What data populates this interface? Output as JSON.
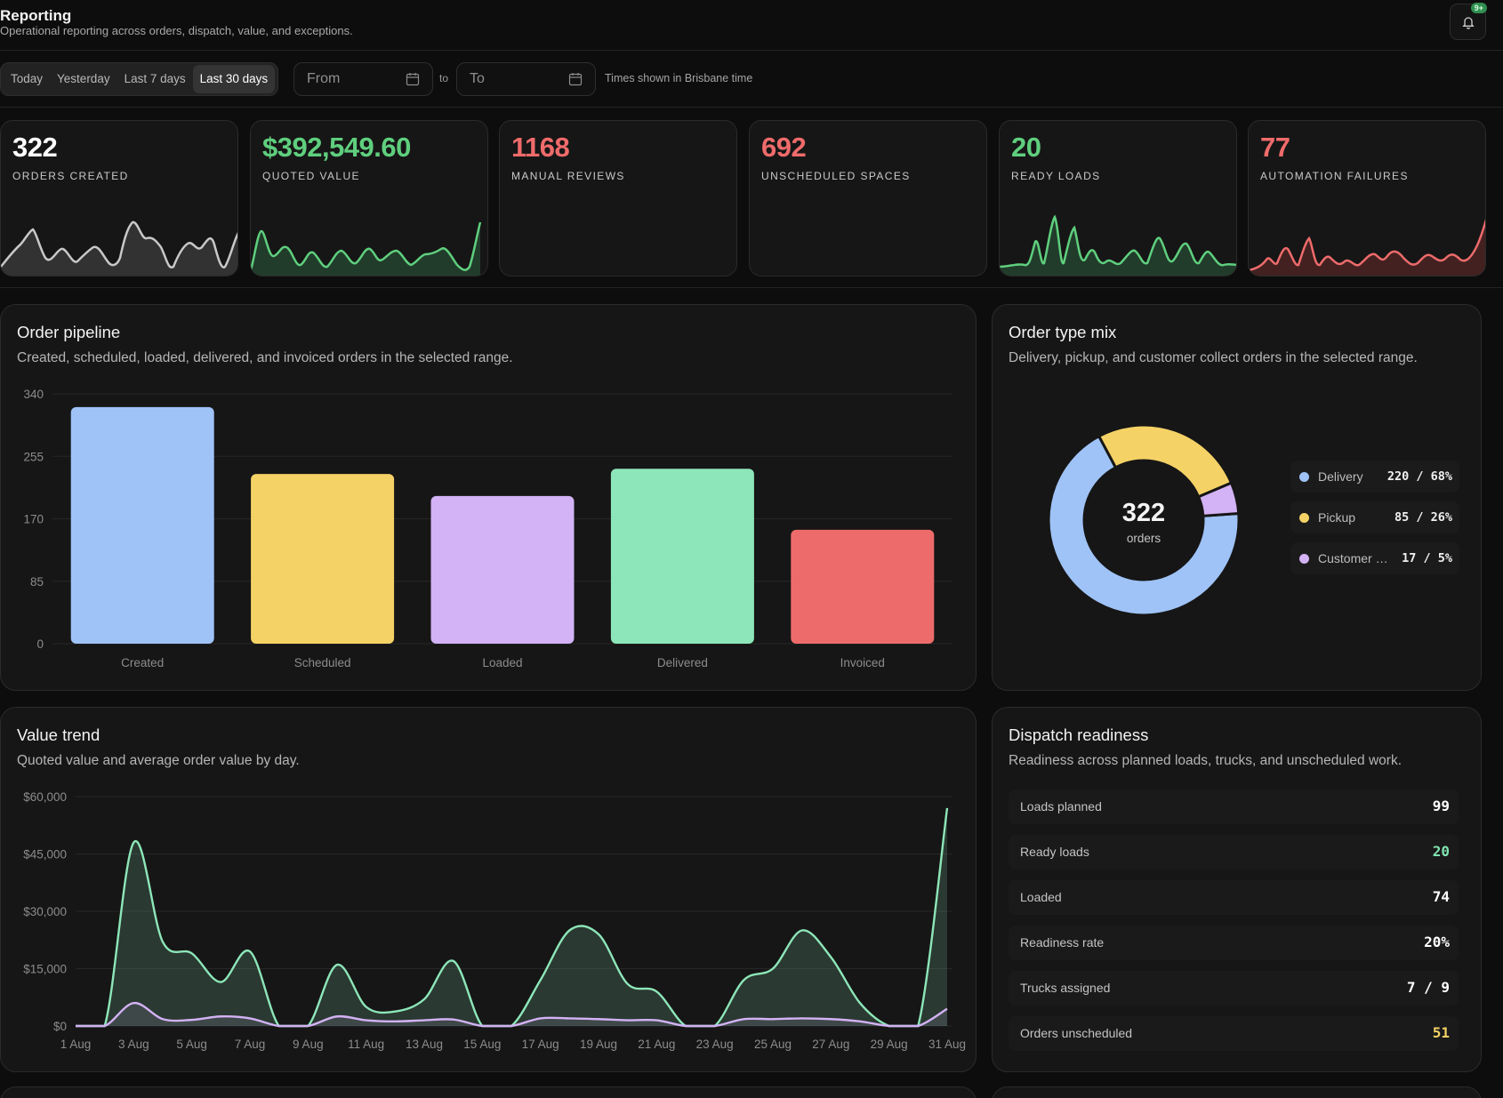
{
  "header": {
    "title": "Reporting",
    "subtitle": "Operational reporting across orders, dispatch, value, and exceptions.",
    "notification_badge": "9+"
  },
  "filters": {
    "ranges": [
      "Today",
      "Yesterday",
      "Last 7 days",
      "Last 30 days"
    ],
    "active_range": "Last 30 days",
    "from_placeholder": "From",
    "to_separator": "to",
    "to_placeholder": "To",
    "timezone_note": "Times shown in Brisbane time"
  },
  "kpis": [
    {
      "value": "322",
      "label": "ORDERS CREATED",
      "color": "#ffffff",
      "spark": "gray"
    },
    {
      "value": "$392,549.60",
      "label": "QUOTED VALUE",
      "color": "#5fcf7e",
      "spark": "green"
    },
    {
      "value": "1168",
      "label": "MANUAL REVIEWS",
      "color": "#f06b6b",
      "spark": "none"
    },
    {
      "value": "692",
      "label": "UNSCHEDULED SPACES",
      "color": "#f06b6b",
      "spark": "none"
    },
    {
      "value": "20",
      "label": "READY LOADS",
      "color": "#5fcf7e",
      "spark": "green"
    },
    {
      "value": "77",
      "label": "AUTOMATION FAILURES",
      "color": "#f06b6b",
      "spark": "red"
    }
  ],
  "pipeline": {
    "title": "Order pipeline",
    "subtitle": "Created, scheduled, loaded, delivered, and invoiced orders in the selected range."
  },
  "order_mix": {
    "title": "Order type mix",
    "subtitle": "Delivery, pickup, and customer collect orders in the selected range.",
    "center_value": "322",
    "center_label": "orders",
    "legend": [
      {
        "name": "Delivery",
        "value": "220 / 68%",
        "color": "#9fc3f7"
      },
      {
        "name": "Pickup",
        "value": "85 / 26%",
        "color": "#f5d266"
      },
      {
        "name": "Customer collect",
        "value": "17 / 5%",
        "color": "#d3b2f5"
      }
    ]
  },
  "value_trend": {
    "title": "Value trend",
    "subtitle": "Quoted value and average order value by day."
  },
  "dispatch": {
    "title": "Dispatch readiness",
    "subtitle": "Readiness across planned loads, trucks, and unscheduled work.",
    "rows": [
      {
        "label": "Loads planned",
        "value": "99",
        "color": "#ffffff"
      },
      {
        "label": "Ready loads",
        "value": "20",
        "color": "#7fe3b0"
      },
      {
        "label": "Loaded",
        "value": "74",
        "color": "#ffffff"
      },
      {
        "label": "Readiness rate",
        "value": "20%",
        "color": "#ffffff"
      },
      {
        "label": "Trucks assigned",
        "value": "7 / 9",
        "color": "#ffffff"
      },
      {
        "label": "Orders unscheduled",
        "value": "51",
        "color": "#f5d266"
      }
    ]
  },
  "chart_data": [
    {
      "type": "bar",
      "title": "Order pipeline",
      "categories": [
        "Created",
        "Scheduled",
        "Loaded",
        "Delivered",
        "Invoiced"
      ],
      "values": [
        322,
        231,
        201,
        238,
        155
      ],
      "colors": [
        "#9fc3f7",
        "#f5d266",
        "#d3b2f5",
        "#8de6b9",
        "#ee6b6b"
      ],
      "ylim": [
        0,
        340
      ],
      "yticks": [
        0,
        85,
        170,
        255,
        340
      ],
      "grid": true
    },
    {
      "type": "pie",
      "title": "Order type mix",
      "labels": [
        "Delivery",
        "Pickup",
        "Customer collect"
      ],
      "values": [
        220,
        85,
        17
      ],
      "colors": [
        "#9fc3f7",
        "#f5d266",
        "#d3b2f5"
      ]
    },
    {
      "type": "area",
      "title": "Value trend",
      "x": [
        "1 Aug",
        "2 Aug",
        "3 Aug",
        "4 Aug",
        "5 Aug",
        "6 Aug",
        "7 Aug",
        "8 Aug",
        "9 Aug",
        "10 Aug",
        "11 Aug",
        "12 Aug",
        "13 Aug",
        "14 Aug",
        "15 Aug",
        "16 Aug",
        "17 Aug",
        "18 Aug",
        "19 Aug",
        "20 Aug",
        "21 Aug",
        "22 Aug",
        "23 Aug",
        "24 Aug",
        "25 Aug",
        "26 Aug",
        "27 Aug",
        "28 Aug",
        "29 Aug",
        "30 Aug",
        "31 Aug"
      ],
      "xticks": [
        "1 Aug",
        "3 Aug",
        "5 Aug",
        "7 Aug",
        "9 Aug",
        "11 Aug",
        "13 Aug",
        "15 Aug",
        "17 Aug",
        "19 Aug",
        "21 Aug",
        "23 Aug",
        "25 Aug",
        "27 Aug",
        "29 Aug",
        "31 Aug"
      ],
      "yticks": [
        "$0",
        "$15,000",
        "$30,000",
        "$45,000",
        "$60,000"
      ],
      "ylim": [
        0,
        60000
      ],
      "series": [
        {
          "values": [
            0,
            0,
            48000,
            22000,
            19000,
            11500,
            19500,
            0,
            0,
            16000,
            5000,
            3800,
            7000,
            17000,
            0,
            0,
            12000,
            25000,
            24000,
            11000,
            9000,
            0,
            0,
            12000,
            15000,
            25000,
            18000,
            6000,
            0,
            0,
            57000
          ],
          "color": "#8de6b9"
        },
        {
          "values": [
            0,
            0,
            6000,
            1800,
            1600,
            2500,
            2000,
            0,
            0,
            2500,
            1500,
            1200,
            1500,
            1700,
            0,
            0,
            2000,
            2000,
            1800,
            1500,
            1500,
            0,
            0,
            1800,
            1800,
            2000,
            1800,
            1200,
            0,
            0,
            4500
          ],
          "color": "#d3b2f5"
        }
      ],
      "grid": true
    }
  ]
}
